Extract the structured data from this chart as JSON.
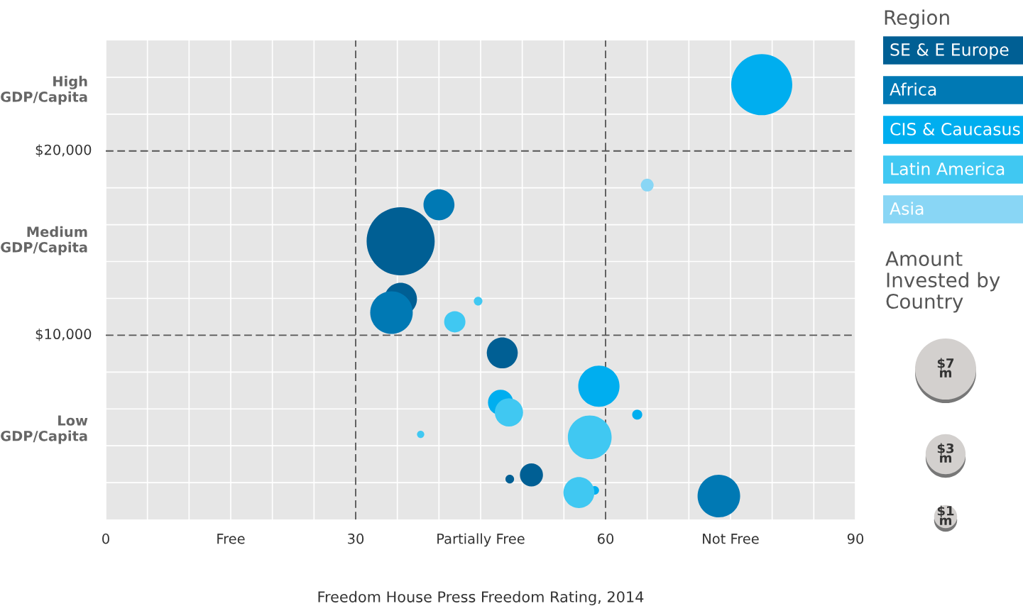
{
  "chart_data": {
    "type": "bubble",
    "xlabel": "Freedom House Press Freedom Rating, 2014",
    "legend_title": "Region",
    "legend": "right",
    "grid": true,
    "xlim": [
      0,
      90
    ],
    "ylim": [
      0,
      26000
    ],
    "xticks": [
      0,
      {
        "value": 5,
        "label": null
      },
      {
        "value": 10,
        "label": null
      },
      {
        "value": 15,
        "label": "Free"
      },
      {
        "value": 20,
        "label": null
      },
      {
        "value": 25,
        "label": null
      },
      {
        "value": 35,
        "label": null
      },
      {
        "value": 40,
        "label": null
      },
      {
        "value": 45,
        "label": "Partially Free"
      },
      {
        "value": 50,
        "label": null
      },
      {
        "value": 55,
        "label": null
      },
      {
        "value": 65,
        "label": null
      },
      {
        "value": 70,
        "label": null
      },
      {
        "value": 75,
        "label": "Not Free"
      },
      {
        "value": 80,
        "label": null
      },
      {
        "value": 85,
        "label": null
      },
      90
    ],
    "yticks": [
      {
        "value": 2000,
        "label": null
      },
      {
        "value": 4000,
        "label": null
      },
      {
        "value": 6000,
        "label": null
      },
      {
        "value": 8000,
        "label": null
      },
      {
        "value": 12000,
        "label": null
      },
      {
        "value": 14000,
        "label": null
      },
      {
        "value": 16000,
        "label": null
      },
      {
        "value": 18000,
        "label": null
      },
      {
        "value": 22000,
        "label": null
      },
      {
        "value": 24000,
        "label": null
      }
    ],
    "ref_lines": [
      {
        "axis": "x",
        "value": 30,
        "label": "30",
        "line_style": "dashed",
        "color": "#555555"
      },
      {
        "axis": "x",
        "value": 60,
        "label": "60",
        "line_style": "dashed",
        "color": "#555555"
      },
      {
        "axis": "y",
        "value": 10000,
        "label": "$10,000",
        "line_style": "dashed",
        "color": "#555555"
      },
      {
        "axis": "y",
        "value": 20000,
        "label": "$20,000",
        "line_style": "dashed",
        "color": "#555555"
      }
    ],
    "size_legend": [
      {
        "value": 7,
        "label": "$7\nm"
      },
      {
        "value": 3,
        "label": "$3\nm"
      },
      {
        "value": 1,
        "label": "$1\nm"
      }
    ],
    "annotations": [
      "Amount\nInvested by\nCountry",
      "Low\nGDP/Capita",
      "Medium\nGDP/Capita",
      "High\nGDP/Capita"
    ],
    "series": [
      {
        "name": "SE & E Europe",
        "color": "#005f94",
        "x": [
          35.4,
          35.4,
          47.6,
          51.1,
          48.5
        ],
        "values": [
          15100,
          11960,
          9040,
          2420,
          2190
        ],
        "sizes": [
          8.7,
          2.0,
          1.8,
          1.0,
          0.14
        ]
      },
      {
        "name": "Africa",
        "color": "#0079b4",
        "x": [
          40.0,
          34.3,
          73.6
        ],
        "values": [
          17080,
          11230,
          1270
        ],
        "sizes": [
          1.8,
          3.4,
          3.4
        ]
      },
      {
        "name": "CIS & Caucasus",
        "color": "#00aeef",
        "x": [
          78.75,
          59.2,
          47.4,
          63.8,
          58.7
        ],
        "values": [
          23600,
          7230,
          6350,
          5690,
          1580
        ],
        "sizes": [
          7.0,
          3.2,
          1.2,
          0.19,
          0.14
        ]
      },
      {
        "name": "Latin America",
        "color": "#40c8f2",
        "x": [
          44.7,
          41.9,
          48.4,
          37.8,
          58.1,
          56.8
        ],
        "values": [
          11850,
          10730,
          5810,
          4620,
          4460,
          1460
        ],
        "sizes": [
          0.14,
          0.85,
          1.5,
          0.1,
          3.6,
          1.8
        ]
      },
      {
        "name": "Asia",
        "color": "#89d6f5",
        "x": [
          65.0
        ],
        "values": [
          18150
        ],
        "sizes": [
          0.31
        ]
      }
    ]
  }
}
